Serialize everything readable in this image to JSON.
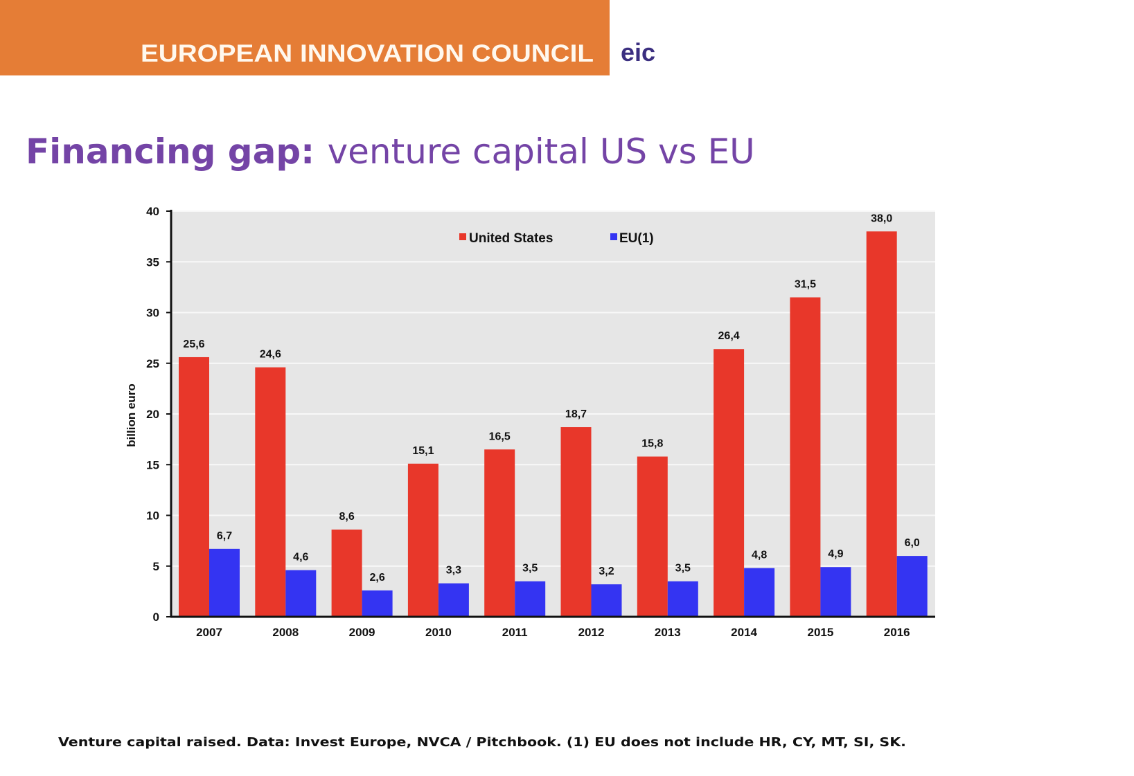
{
  "header": {
    "org_name": "EUROPEAN INNOVATION COUNCIL",
    "logo_text": "eic",
    "band_color": "#e57d36"
  },
  "title": {
    "bold": "Financing gap:",
    "regular": "venture capital US vs EU"
  },
  "footnote": "Venture capital raised. Data: Invest Europe, NVCA / Pitchbook. (1) EU does not include HR, CY, MT, SI, SK.",
  "chart_data": {
    "type": "bar",
    "categories": [
      "2007",
      "2008",
      "2009",
      "2010",
      "2011",
      "2012",
      "2013",
      "2014",
      "2015",
      "2016"
    ],
    "series": [
      {
        "name": "United States",
        "color": "#e8372a",
        "values": [
          25.6,
          24.6,
          8.6,
          15.1,
          16.5,
          18.7,
          15.8,
          26.4,
          31.5,
          38.0
        ],
        "labels": [
          "25,6",
          "24,6",
          "8,6",
          "15,1",
          "16,5",
          "18,7",
          "15,8",
          "26,4",
          "31,5",
          "38,0"
        ]
      },
      {
        "name": "EU(1)",
        "color": "#3434f2",
        "values": [
          6.7,
          4.6,
          2.6,
          3.3,
          3.5,
          3.2,
          3.5,
          4.8,
          4.9,
          6.0
        ],
        "labels": [
          "6,7",
          "4,6",
          "2,6",
          "3,3",
          "3,5",
          "3,2",
          "3,5",
          "4,8",
          "4,9",
          "6,0"
        ]
      }
    ],
    "ylabel": "billion euro",
    "xlabel": "",
    "ylim": [
      0,
      40
    ],
    "yticks": [
      "0",
      "5",
      "10",
      "15",
      "20",
      "25",
      "30",
      "35",
      "40"
    ],
    "grid": true,
    "plot_background": "#e6e6e6",
    "legend": "top-center"
  }
}
